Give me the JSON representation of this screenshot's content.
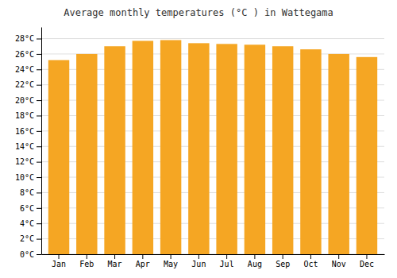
{
  "chart_data": {
    "type": "bar",
    "title": "Average monthly temperatures (°C ) in Wattegama",
    "categories": [
      "Jan",
      "Feb",
      "Mar",
      "Apr",
      "May",
      "Jun",
      "Jul",
      "Aug",
      "Sep",
      "Oct",
      "Nov",
      "Dec"
    ],
    "values": [
      25.2,
      26.0,
      27.0,
      27.7,
      27.8,
      27.4,
      27.3,
      27.2,
      27.0,
      26.6,
      26.0,
      25.6
    ],
    "color": "#F5A623",
    "ylim": [
      0,
      29.5
    ],
    "yticks": [
      {
        "value": 0,
        "label": "0°C"
      },
      {
        "value": 2,
        "label": "2°C"
      },
      {
        "value": 4,
        "label": "4°C"
      },
      {
        "value": 6,
        "label": "6°C"
      },
      {
        "value": 8,
        "label": "8°C"
      },
      {
        "value": 10,
        "label": "10°C"
      },
      {
        "value": 12,
        "label": "12°C"
      },
      {
        "value": 14,
        "label": "14°C"
      },
      {
        "value": 16,
        "label": "16°C"
      },
      {
        "value": 18,
        "label": "18°C"
      },
      {
        "value": 20,
        "label": "20°C"
      },
      {
        "value": 22,
        "label": "22°C"
      },
      {
        "value": 24,
        "label": "24°C"
      },
      {
        "value": 26,
        "label": "26°C"
      },
      {
        "value": 28,
        "label": "28°C"
      }
    ],
    "grid": true
  }
}
